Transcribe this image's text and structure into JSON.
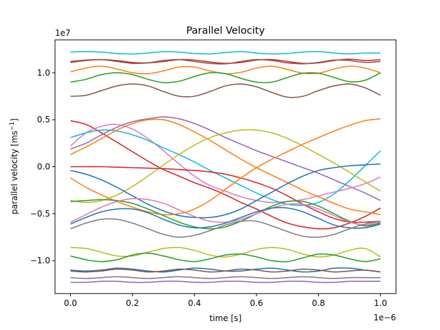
{
  "chart_data": {
    "type": "line",
    "title": "Parallel Velocity",
    "xlabel": "time [s]",
    "ylabel_main": "parallel velocity [ms",
    "ylabel_sup": "−1",
    "ylabel_end": "]",
    "x_offset_label": "1e−6",
    "y_offset_label": "1e7",
    "xlim": [
      -0.05,
      1.05
    ],
    "ylim": [
      -13.5,
      13.5
    ],
    "x_unit_scale": 1e-06,
    "y_unit_scale": 10000000.0,
    "xticks": [
      0.0,
      0.2,
      0.4,
      0.6,
      0.8,
      1.0
    ],
    "xtick_labels": [
      "0.0",
      "0.2",
      "0.4",
      "0.6",
      "0.8",
      "1.0"
    ],
    "yticks": [
      -10,
      -5,
      0,
      5,
      10
    ],
    "ytick_labels": [
      "−1.0",
      "−0.5",
      "0.0",
      "0.5",
      "1.0"
    ],
    "grid": false,
    "x": [
      0.0,
      0.05,
      0.1,
      0.15,
      0.2,
      0.25,
      0.3,
      0.35,
      0.4,
      0.45,
      0.5,
      0.55,
      0.6,
      0.65,
      0.7,
      0.75,
      0.8,
      0.85,
      0.9,
      0.95,
      1.0
    ],
    "series": [
      {
        "color": "#17becf",
        "values": [
          12.2,
          12.25,
          12.2,
          12.05,
          12.0,
          12.1,
          12.25,
          12.2,
          12.05,
          12.0,
          12.15,
          12.25,
          12.1,
          12.0,
          12.05,
          12.2,
          12.25,
          12.1,
          12.0,
          12.1,
          12.1
        ]
      },
      {
        "color": "#d62728",
        "values": [
          11.2,
          11.35,
          11.4,
          11.3,
          11.1,
          11.05,
          11.2,
          11.4,
          11.35,
          11.15,
          11.0,
          11.1,
          11.35,
          11.4,
          11.2,
          11.0,
          11.05,
          11.3,
          11.45,
          11.3,
          11.4
        ]
      },
      {
        "color": "#8c564b",
        "values": [
          11.1,
          11.3,
          11.4,
          11.2,
          11.0,
          11.05,
          11.3,
          11.4,
          11.2,
          11.0,
          10.95,
          11.2,
          11.4,
          11.3,
          11.05,
          10.95,
          11.1,
          11.35,
          11.3,
          11.1,
          11.2
        ]
      },
      {
        "color": "#ff7f0e",
        "values": [
          10.1,
          10.5,
          10.7,
          10.4,
          10.0,
          9.9,
          10.2,
          10.6,
          10.6,
          10.2,
          9.9,
          10.05,
          10.5,
          10.7,
          10.35,
          9.95,
          9.95,
          10.4,
          10.7,
          10.5,
          10.0
        ]
      },
      {
        "color": "#2ca02c",
        "values": [
          9.0,
          9.3,
          9.8,
          10.0,
          9.8,
          9.3,
          8.95,
          9.1,
          9.6,
          10.0,
          9.9,
          9.4,
          9.0,
          9.0,
          9.5,
          9.95,
          9.95,
          9.5,
          9.05,
          9.2,
          10.0
        ]
      },
      {
        "color": "#8c564b",
        "values": [
          7.5,
          7.6,
          8.1,
          8.6,
          8.8,
          8.6,
          8.0,
          7.5,
          7.5,
          8.0,
          8.6,
          8.8,
          8.5,
          7.9,
          7.4,
          7.5,
          8.1,
          8.6,
          8.8,
          8.4,
          7.6
        ]
      },
      {
        "color": "#d62728",
        "values": [
          4.9,
          4.5,
          3.6,
          2.6,
          1.6,
          0.6,
          -0.3,
          -1.0,
          -1.7,
          -2.3,
          -3.0,
          -3.8,
          -4.5,
          -5.3,
          -6.0,
          -6.4,
          -6.6,
          -6.5,
          -6.0,
          -5.3,
          -4.4
        ]
      },
      {
        "color": "#9467bd",
        "values": [
          1.9,
          2.5,
          3.4,
          4.2,
          4.8,
          5.1,
          5.3,
          5.1,
          4.6,
          3.9,
          3.1,
          2.4,
          1.7,
          1.1,
          0.5,
          -0.1,
          -0.7,
          -1.4,
          -2.1,
          -2.8,
          -3.6
        ]
      },
      {
        "color": "#e377c2",
        "values": [
          2.2,
          3.6,
          4.3,
          4.5,
          4.0,
          3.0,
          1.7,
          0.3,
          -1.0,
          -2.0,
          -2.6,
          -3.2,
          -3.6,
          -3.8,
          -3.7,
          -3.5,
          -3.1,
          -2.7,
          -2.3,
          -1.8,
          -1.1
        ]
      },
      {
        "color": "#17becf",
        "values": [
          3.1,
          3.6,
          3.9,
          3.8,
          3.4,
          2.8,
          2.0,
          1.3,
          0.5,
          -0.4,
          -1.2,
          -2.0,
          -2.8,
          -3.5,
          -4.0,
          -4.1,
          -3.8,
          -2.9,
          -1.5,
          0.1,
          1.7
        ]
      },
      {
        "color": "#ff7f0e",
        "values": [
          1.3,
          2.1,
          3.0,
          3.9,
          4.6,
          5.0,
          5.0,
          4.5,
          3.7,
          2.8,
          1.8,
          0.8,
          -0.1,
          -0.9,
          -1.7,
          -2.5,
          -3.2,
          -3.9,
          -4.5,
          -4.8,
          -5.1
        ]
      },
      {
        "color": "#bcbd22",
        "values": [
          -3.6,
          -3.8,
          -3.6,
          -3.0,
          -2.1,
          -1.0,
          0.2,
          1.3,
          2.3,
          3.1,
          3.6,
          3.9,
          3.9,
          3.6,
          3.0,
          2.2,
          1.3,
          0.4,
          -0.6,
          -1.6,
          -2.6
        ]
      },
      {
        "color": "#d62728",
        "values": [
          0.0,
          0.0,
          0.0,
          -0.05,
          -0.1,
          -0.15,
          -0.2,
          -0.3,
          -0.4,
          -0.55,
          -0.8,
          -1.2,
          -1.7,
          -2.3,
          -3.1,
          -4.0,
          -4.8,
          -5.5,
          -5.9,
          -5.9,
          -5.8
        ]
      },
      {
        "color": "#1f77b4",
        "values": [
          -0.4,
          -0.8,
          -1.4,
          -2.2,
          -3.1,
          -4.0,
          -4.7,
          -5.2,
          -5.4,
          -5.4,
          -5.1,
          -4.5,
          -3.6,
          -2.7,
          -1.8,
          -1.0,
          -0.4,
          -0.1,
          0.1,
          0.2,
          0.3
        ]
      },
      {
        "color": "#ff7f0e",
        "values": [
          -1.2,
          -2.2,
          -3.0,
          -3.7,
          -4.3,
          -4.8,
          -5.1,
          -5.0,
          -4.5,
          -3.6,
          -2.4,
          -1.2,
          -0.1,
          0.8,
          1.6,
          2.4,
          3.1,
          3.8,
          4.4,
          4.9,
          5.1
        ]
      },
      {
        "color": "#2ca02c",
        "values": [
          -3.7,
          -3.6,
          -3.5,
          -3.6,
          -3.9,
          -4.5,
          -5.2,
          -5.9,
          -6.4,
          -6.6,
          -6.4,
          -5.8,
          -5.0,
          -4.2,
          -3.7,
          -3.7,
          -4.2,
          -5.0,
          -5.8,
          -6.3,
          -6.0
        ]
      },
      {
        "color": "#e377c2",
        "values": [
          -5.9,
          -5.1,
          -4.3,
          -3.7,
          -3.4,
          -3.5,
          -3.9,
          -4.6,
          -5.3,
          -5.8,
          -5.9,
          -5.6,
          -5.0,
          -4.4,
          -4.0,
          -4.0,
          -4.5,
          -5.2,
          -5.9,
          -6.2,
          -5.9
        ]
      },
      {
        "color": "#1f77b4",
        "values": [
          -6.1,
          -5.4,
          -4.8,
          -4.5,
          -4.5,
          -4.9,
          -5.6,
          -6.2,
          -6.5,
          -6.4,
          -6.0,
          -5.4,
          -4.8,
          -4.4,
          -4.4,
          -4.8,
          -5.5,
          -6.2,
          -6.5,
          -6.5,
          -6.1
        ]
      },
      {
        "color": "#7f7f7f",
        "values": [
          -6.6,
          -6.0,
          -5.6,
          -5.6,
          -6.0,
          -6.6,
          -7.2,
          -7.5,
          -7.3,
          -6.8,
          -6.2,
          -5.8,
          -5.8,
          -6.3,
          -6.9,
          -7.4,
          -7.5,
          -7.2,
          -6.6,
          -6.1,
          -5.8
        ]
      },
      {
        "color": "#bcbd22",
        "values": [
          -8.6,
          -8.7,
          -9.1,
          -9.5,
          -9.5,
          -9.1,
          -8.7,
          -8.6,
          -8.9,
          -9.4,
          -9.6,
          -9.3,
          -8.8,
          -8.6,
          -8.8,
          -9.3,
          -9.6,
          -9.4,
          -8.9,
          -8.7,
          -9.6
        ]
      },
      {
        "color": "#2ca02c",
        "values": [
          -9.5,
          -9.9,
          -10.1,
          -9.9,
          -9.4,
          -9.2,
          -9.5,
          -9.9,
          -10.1,
          -9.8,
          -9.4,
          -9.3,
          -9.6,
          -10.0,
          -10.1,
          -9.7,
          -9.3,
          -9.4,
          -9.8,
          -10.1,
          -9.8
        ]
      },
      {
        "color": "#1f77b4",
        "values": [
          -11.0,
          -11.1,
          -11.0,
          -10.8,
          -10.9,
          -11.1,
          -11.2,
          -11.0,
          -10.8,
          -10.9,
          -11.1,
          -11.1,
          -10.9,
          -10.8,
          -11.0,
          -11.2,
          -11.1,
          -10.8,
          -10.8,
          -11.0,
          -11.2
        ]
      },
      {
        "color": "#8c564b",
        "values": [
          -11.1,
          -11.2,
          -11.1,
          -10.9,
          -11.0,
          -11.2,
          -11.1,
          -10.9,
          -11.0,
          -11.2,
          -11.1,
          -10.9,
          -11.0,
          -11.2,
          -11.1,
          -10.9,
          -11.0,
          -11.2,
          -11.1,
          -11.0,
          -11.2
        ]
      },
      {
        "color": "#7f7f7f",
        "values": [
          -11.8,
          -11.9,
          -11.8,
          -11.7,
          -11.8,
          -11.9,
          -11.8,
          -11.7,
          -11.8,
          -11.9,
          -11.8,
          -11.7,
          -11.8,
          -11.9,
          -11.8,
          -11.7,
          -11.8,
          -11.9,
          -11.8,
          -11.8,
          -11.8
        ]
      },
      {
        "color": "#9467bd",
        "values": [
          -12.3,
          -12.3,
          -12.2,
          -12.2,
          -12.3,
          -12.3,
          -12.2,
          -12.2,
          -12.3,
          -12.3,
          -12.2,
          -12.2,
          -12.3,
          -12.3,
          -12.2,
          -12.2,
          -12.3,
          -12.3,
          -12.2,
          -12.2,
          -12.2
        ]
      }
    ]
  }
}
